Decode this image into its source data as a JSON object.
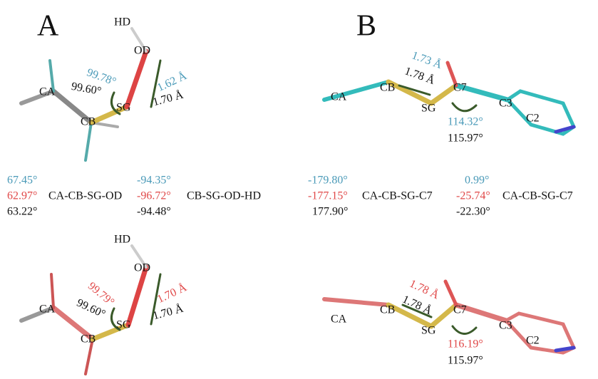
{
  "panels": [
    {
      "label": "A",
      "top": {
        "atoms": [
          "HD",
          "OD",
          "CA",
          "CB",
          "SG"
        ],
        "measures": [
          "99.78°",
          "99.60°",
          "1.62 Å",
          "1.70 Å"
        ]
      },
      "dihedrals": [
        {
          "values": [
            "67.45°",
            "62.97°",
            "63.22°"
          ],
          "name": "CA-CB-SG-OD"
        },
        {
          "values": [
            "-94.35°",
            "-96.72°",
            "-94.48°"
          ],
          "name": "CB-SG-OD-HD"
        }
      ],
      "bottom": {
        "atoms": [
          "HD",
          "OD",
          "CA",
          "CB",
          "SG"
        ],
        "measures": [
          "99.79°",
          "99.60°",
          "1.70 Å",
          "1.70 Å"
        ]
      }
    },
    {
      "label": "B",
      "top": {
        "atoms": [
          "CA",
          "CB",
          "SG",
          "C7",
          "C3",
          "C2"
        ],
        "measures": [
          "1.73 Å",
          "1.78 Å",
          "114.32°",
          "115.97°"
        ]
      },
      "dihedrals": [
        {
          "values": [
            "-179.80°",
            "-177.15°",
            "177.90°"
          ],
          "name": "CA-CB-SG-C7"
        },
        {
          "values": [
            "0.99°",
            "-25.74°",
            "-22.30°"
          ],
          "name": "CA-CB-SG-C7"
        }
      ],
      "bottom": {
        "atoms": [
          "CA",
          "CB",
          "SG",
          "C7",
          "C3",
          "C2"
        ],
        "measures": [
          "1.78 Å",
          "1.78 Å",
          "116.19°",
          "115.97°"
        ]
      }
    }
  ]
}
